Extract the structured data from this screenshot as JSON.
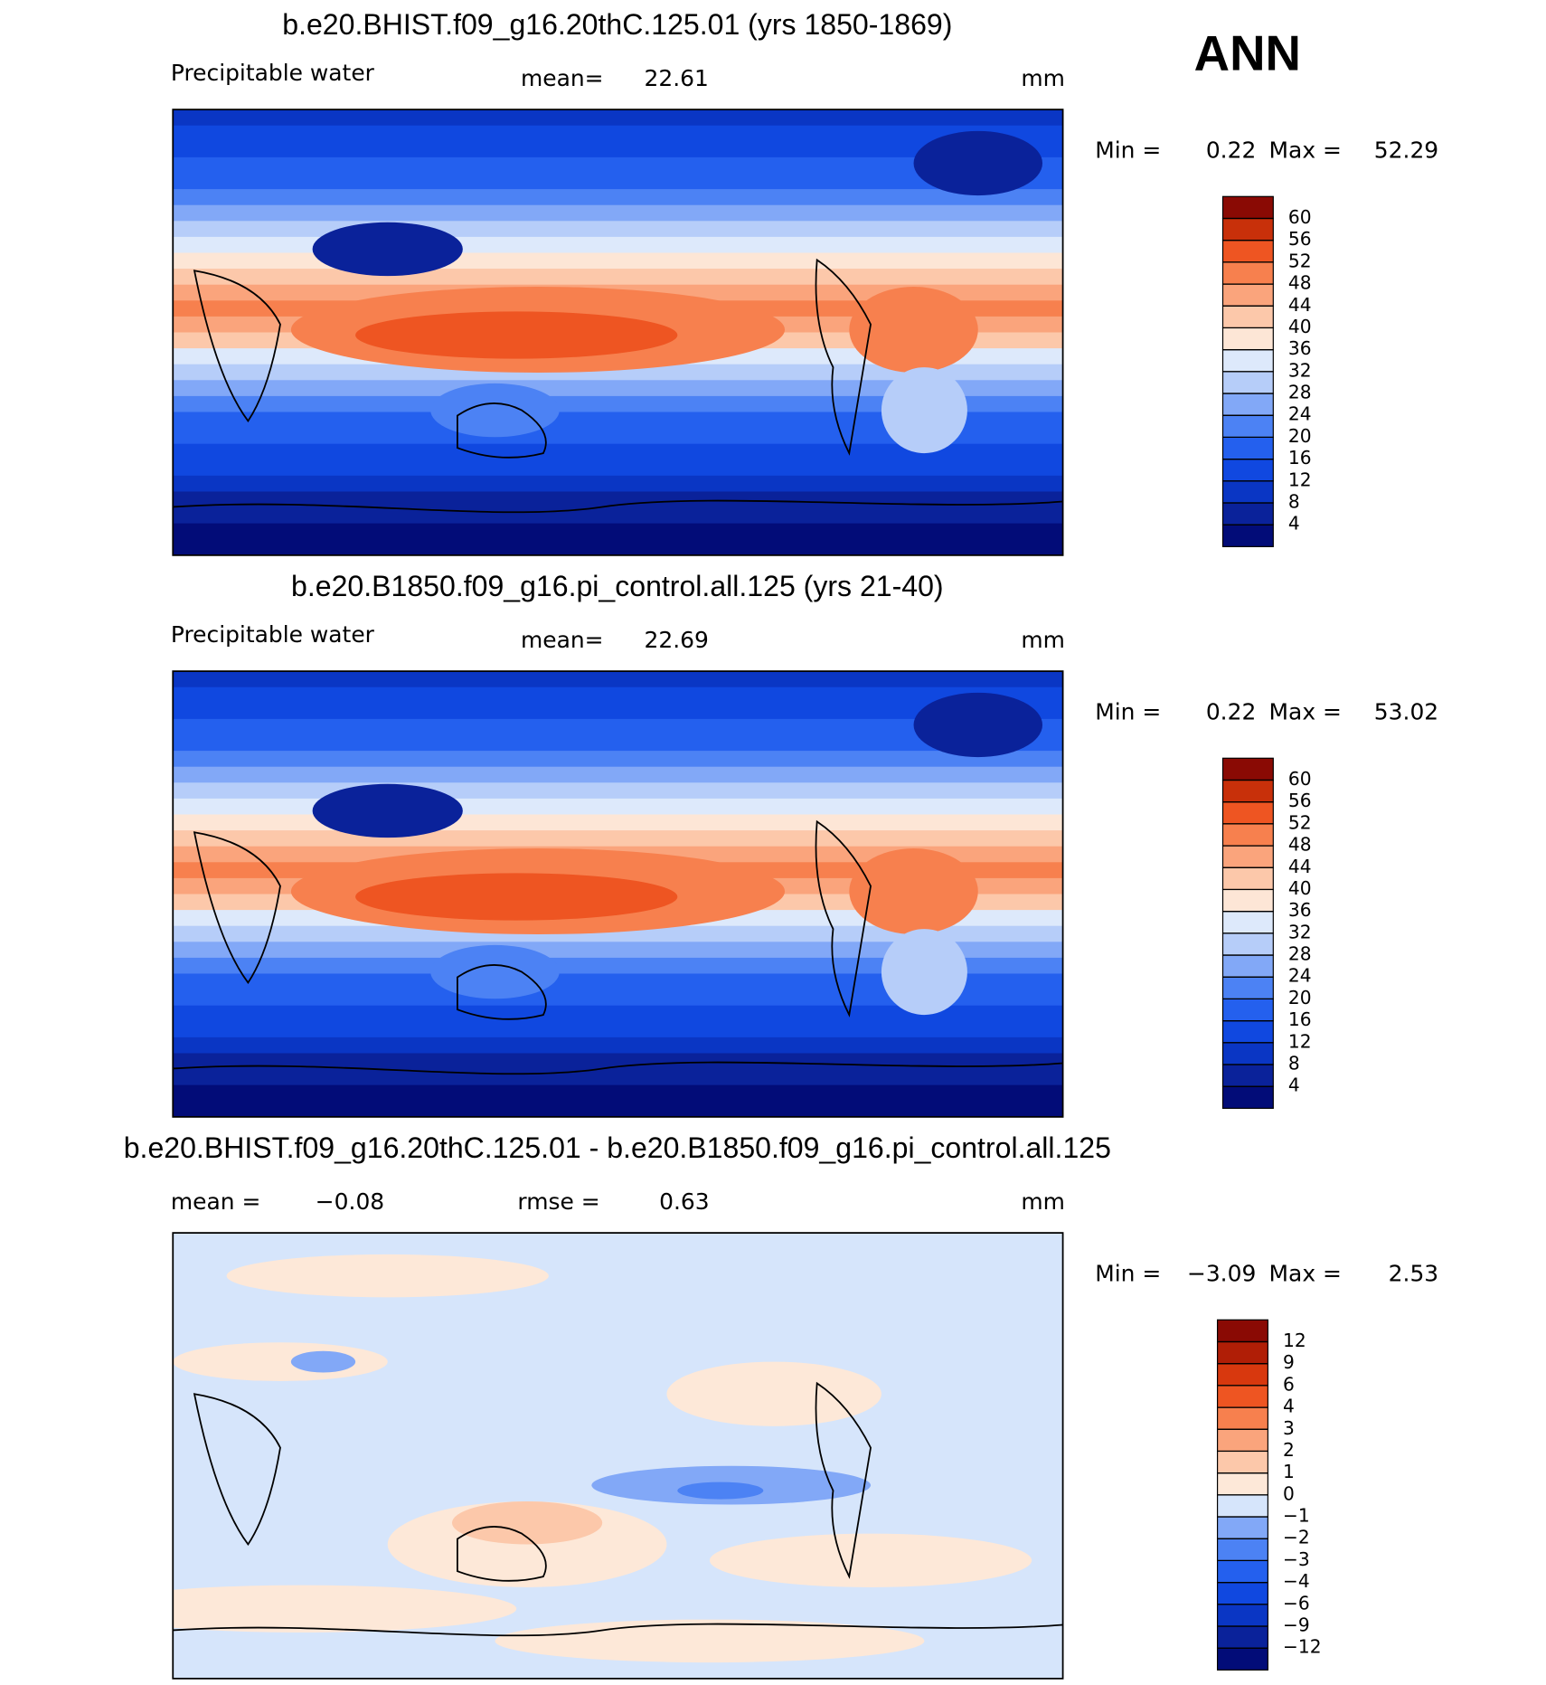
{
  "label": "ANN",
  "chart_data": [
    {
      "type": "contour-map",
      "title": "b.e20.BHIST.f09_g16.20thC.125.01 (yrs 1850-1869)",
      "variable": "Precipitable water",
      "stat1_label": "mean=",
      "stat1": 22.61,
      "units": "mm",
      "min_label": "Min =",
      "min": 0.22,
      "max_label": "Max =",
      "max": 52.29,
      "levels": [
        4,
        8,
        12,
        16,
        20,
        24,
        28,
        32,
        36,
        40,
        44,
        48,
        52,
        56,
        60
      ],
      "colors": [
        "#020c78",
        "#0a229a",
        "#0a36c4",
        "#1048e0",
        "#2460ee",
        "#4c82f4",
        "#82a8f7",
        "#b6cdf9",
        "#dde9fb",
        "#fde6d6",
        "#fcc8aa",
        "#faa47c",
        "#f7804e",
        "#ee5522",
        "#c8300a",
        "#8a0a04"
      ]
    },
    {
      "type": "contour-map",
      "title": "b.e20.B1850.f09_g16.pi_control.all.125 (yrs 21-40)",
      "variable": "Precipitable water",
      "stat1_label": "mean=",
      "stat1": 22.69,
      "units": "mm",
      "min_label": "Min =",
      "min": 0.22,
      "max_label": "Max =",
      "max": 53.02,
      "levels": [
        4,
        8,
        12,
        16,
        20,
        24,
        28,
        32,
        36,
        40,
        44,
        48,
        52,
        56,
        60
      ],
      "colors": [
        "#020c78",
        "#0a229a",
        "#0a36c4",
        "#1048e0",
        "#2460ee",
        "#4c82f4",
        "#82a8f7",
        "#b6cdf9",
        "#dde9fb",
        "#fde6d6",
        "#fcc8aa",
        "#faa47c",
        "#f7804e",
        "#ee5522",
        "#c8300a",
        "#8a0a04"
      ]
    },
    {
      "type": "contour-diff-map",
      "title": "b.e20.BHIST.f09_g16.20thC.125.01 - b.e20.B1850.f09_g16.pi_control.all.125",
      "stat1_label": "mean =",
      "stat1": {
        "value": -0.08,
        "label": "−0.08"
      },
      "stat2_label": "rmse =",
      "stat2": 0.63,
      "units": "mm",
      "min_label": "Min =",
      "min": {
        "value": -3.09,
        "label": "−3.09"
      },
      "max_label": "Max =",
      "max": 2.53,
      "levels": [
        {
          "value": -12,
          "label": "−12"
        },
        {
          "value": -9,
          "label": "−9"
        },
        {
          "value": -6,
          "label": "−6"
        },
        {
          "value": -4,
          "label": "−4"
        },
        {
          "value": -3,
          "label": "−3"
        },
        {
          "value": -2,
          "label": "−2"
        },
        {
          "value": -1,
          "label": "−1"
        },
        0,
        1,
        2,
        3,
        4,
        6,
        9,
        12
      ],
      "colors": [
        "#020c78",
        "#0a229a",
        "#0a36c4",
        "#1048e0",
        "#2460ee",
        "#4c82f4",
        "#82a8f7",
        "#d6e5fb",
        "#fde8d8",
        "#fcc8aa",
        "#faa47c",
        "#f7804e",
        "#ee5522",
        "#d8380e",
        "#b01e06",
        "#8a0a04"
      ]
    }
  ]
}
